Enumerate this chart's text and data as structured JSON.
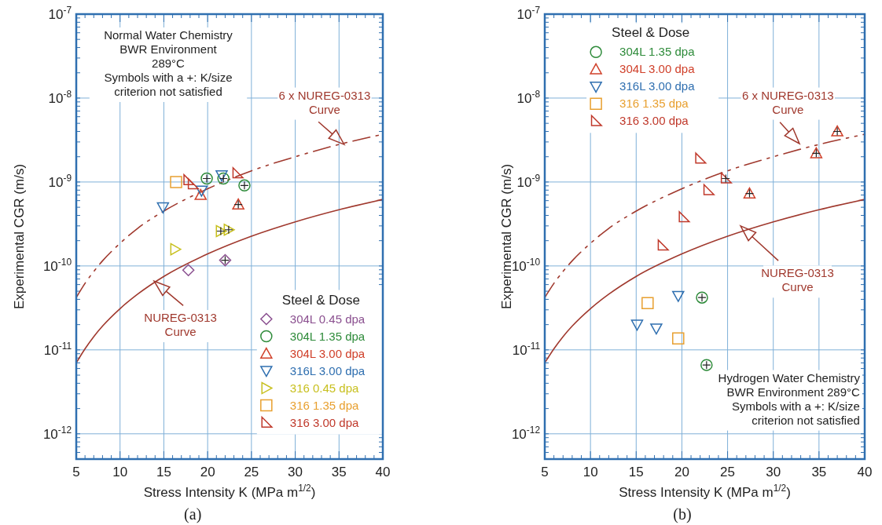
{
  "chart_data": [
    {
      "type": "scatter",
      "xlabel": "Stress Intensity K (MPa m$^{1/2}$)",
      "ylabel": "Experimental CGR (m/s)",
      "legend_title": "Steel & Dose",
      "legend": "bottom right",
      "grid": true,
      "log": "y",
      "xlim": [
        5,
        40
      ],
      "xticks": [
        5,
        10,
        15,
        20,
        25,
        30,
        35,
        40
      ],
      "ylim": [
        5e-13,
        1e-07
      ],
      "yticks": [
        {
          "value": 1e-12,
          "label": "10$^{-12}$"
        },
        {
          "value": 1e-11,
          "label": "10$^{-11}$"
        },
        {
          "value": 1e-10,
          "label": "10$^{-10}$"
        },
        {
          "value": 1e-09,
          "label": "10$^{-9}$"
        },
        {
          "value": 1e-08,
          "label": "10$^{-8}$"
        },
        {
          "value": 1e-07,
          "label": "10$^{-7}$"
        }
      ],
      "series": [
        {
          "name": "304L 0.45 dpa",
          "color": "#8a4f8f",
          "marker": "diamond",
          "x": [
            17.8,
            22.0
          ],
          "values": [
            8.9e-11,
            1.17e-10
          ]
        },
        {
          "name": "304L 1.35 dpa",
          "color": "#2e8b3a",
          "marker": "circle",
          "x": [
            19.9,
            21.8,
            24.2
          ],
          "values": [
            1.1e-09,
            1.1e-09,
            9.1e-10
          ]
        },
        {
          "name": "304L 3.00 dpa",
          "color": "#d0402a",
          "marker": "triangle",
          "x": [
            19.2,
            23.5
          ],
          "values": [
            7e-10,
            5.4e-10
          ]
        },
        {
          "name": "316L 3.00 dpa",
          "color": "#2f6fb0",
          "marker": "triangle-down",
          "x": [
            14.9,
            19.3,
            21.6
          ],
          "values": [
            5e-10,
            7.9e-10,
            1.2e-09
          ]
        },
        {
          "name": "316 0.45 dpa",
          "color": "#c8c020",
          "marker": "triangle-right",
          "x": [
            16.3,
            21.5,
            22.4
          ],
          "values": [
            1.58e-10,
            2.6e-10,
            2.7e-10
          ]
        },
        {
          "name": "316 1.35 dpa",
          "color": "#e8a030",
          "marker": "square",
          "x": [
            16.4
          ],
          "values": [
            1e-09
          ]
        },
        {
          "name": "316 3.00 dpa",
          "color": "#c0392b",
          "marker": "triangle-left",
          "x": [
            17.8,
            18.3,
            23.4
          ],
          "values": [
            1.05e-09,
            9.4e-10,
            1.27e-09
          ]
        },
        {
          "color": "#222222",
          "marker": "cross",
          "x": [
            22.0,
            19.9,
            21.8,
            24.2,
            23.5,
            21.5,
            22.4
          ],
          "values": [
            1.17e-10,
            1.1e-09,
            1.1e-09,
            9.1e-10,
            5.4e-10,
            2.6e-10,
            2.7e-10
          ]
        },
        {
          "type": "line",
          "color": "#a0392e",
          "line_style": "dashed",
          "x": [
            5,
            6,
            7,
            8,
            10,
            12,
            15,
            20,
            25,
            30,
            35,
            40
          ],
          "values": [
            4.2e-11,
            6.2e-11,
            8.6e-11,
            1.15e-10,
            1.86e-10,
            2.8e-10,
            4.5e-10,
            8.3e-10,
            1.36e-09,
            2e-09,
            2.8e-09,
            3.7e-09
          ]
        },
        {
          "type": "line",
          "color": "#a0392e",
          "line_style": "solid",
          "x": [
            5,
            6,
            7,
            8,
            10,
            12,
            15,
            20,
            25,
            30,
            35,
            40
          ],
          "values": [
            7e-12,
            1.03e-11,
            1.44e-11,
            1.92e-11,
            3.1e-11,
            4.6e-11,
            7.5e-11,
            1.39e-10,
            2.26e-10,
            3.35e-10,
            4.67e-10,
            6.2e-10
          ]
        }
      ],
      "annotations": [
        "Normal Water Chemistry\nBWR Environment\n289°C\nSymbols with a +: K/size\ncriterion not satisfied",
        "6 x NUREG-0313\nCurve",
        "NUREG-0313\nCurve",
        "(a)"
      ]
    },
    {
      "type": "scatter",
      "xlabel": "Stress Intensity K (MPa m$^{1/2}$)",
      "ylabel": "Experimental CGR (m/s)",
      "legend_title": "Steel & Dose",
      "legend": "top left",
      "grid": true,
      "log": "y",
      "xlim": [
        5,
        40
      ],
      "xticks": [
        5,
        10,
        15,
        20,
        25,
        30,
        35,
        40
      ],
      "ylim": [
        5e-13,
        1e-07
      ],
      "yticks": [
        {
          "value": 1e-12,
          "label": "10$^{-12}$"
        },
        {
          "value": 1e-11,
          "label": "10$^{-11}$"
        },
        {
          "value": 1e-10,
          "label": "10$^{-10}$"
        },
        {
          "value": 1e-09,
          "label": "10$^{-9}$"
        },
        {
          "value": 1e-08,
          "label": "10$^{-8}$"
        },
        {
          "value": 1e-07,
          "label": "10$^{-7}$"
        }
      ],
      "series": [
        {
          "name": "304L 1.35 dpa",
          "color": "#2e8b3a",
          "marker": "circle",
          "x": [
            22.2,
            22.7
          ],
          "values": [
            4.2e-11,
            6.6e-12
          ]
        },
        {
          "name": "304L 3.00 dpa",
          "color": "#d0402a",
          "marker": "triangle",
          "x": [
            34.7,
            37.0,
            27.4
          ],
          "values": [
            2.2e-09,
            4e-09,
            7.3e-10
          ]
        },
        {
          "name": "316L 3.00 dpa",
          "color": "#2f6fb0",
          "marker": "triangle-down",
          "x": [
            15.1,
            17.2,
            19.6
          ],
          "values": [
            2e-11,
            1.8e-11,
            4.4e-11
          ]
        },
        {
          "name": "316 1.35 dpa",
          "color": "#e8a030",
          "marker": "square",
          "x": [
            16.25,
            19.6
          ],
          "values": [
            3.6e-11,
            1.37e-11
          ]
        },
        {
          "name": "316 3.00 dpa",
          "color": "#c0392b",
          "marker": "triangle-left",
          "x": [
            22.0,
            22.9,
            24.8,
            20.2,
            17.9
          ],
          "values": [
            1.9e-09,
            8e-10,
            1.1e-09,
            3.8e-10,
            1.75e-10
          ]
        },
        {
          "color": "#222222",
          "marker": "cross",
          "x": [
            22.2,
            22.7,
            34.7,
            37.0,
            27.4,
            24.8
          ],
          "values": [
            4.2e-11,
            6.6e-12,
            2.2e-09,
            4e-09,
            7.3e-10,
            1.1e-09
          ]
        },
        {
          "type": "line",
          "color": "#a0392e",
          "line_style": "dashed",
          "x": [
            5,
            6,
            7,
            8,
            10,
            12,
            15,
            20,
            25,
            30,
            35,
            40
          ],
          "values": [
            4.2e-11,
            6.2e-11,
            8.6e-11,
            1.15e-10,
            1.86e-10,
            2.8e-10,
            4.5e-10,
            8.3e-10,
            1.36e-09,
            2e-09,
            2.8e-09,
            3.7e-09
          ]
        },
        {
          "type": "line",
          "color": "#a0392e",
          "line_style": "solid",
          "x": [
            5,
            6,
            7,
            8,
            10,
            12,
            15,
            20,
            25,
            30,
            35,
            40
          ],
          "values": [
            7e-12,
            1.03e-11,
            1.44e-11,
            1.92e-11,
            3.1e-11,
            4.6e-11,
            7.5e-11,
            1.39e-10,
            2.26e-10,
            3.35e-10,
            4.67e-10,
            6.2e-10
          ]
        }
      ],
      "annotations": [
        "6 x NUREG-0313\nCurve",
        "NUREG-0313\nCurve",
        "Hydrogen Water Chemistry\nBWR Environment 289°C\nSymbols with a +: K/size\ncriterion not satisfied",
        "(b)"
      ]
    }
  ]
}
